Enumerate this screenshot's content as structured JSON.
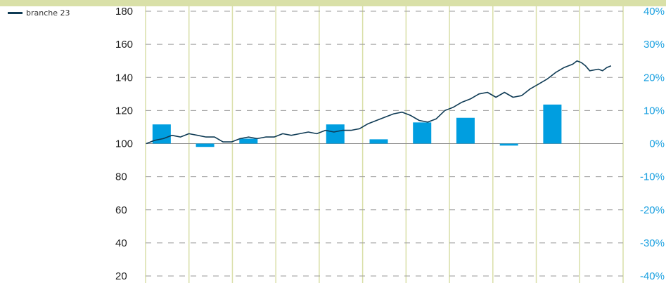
{
  "colors": {
    "line": "#0f3b55",
    "bars": "#009ee0",
    "grid_vertical": "#d9dfa8",
    "grid_horizontal": "#9a9a9a",
    "right_axis_text": "#1aa0e0",
    "top_band": "#d9e0a8"
  },
  "legend": {
    "label": "branche 23"
  },
  "chart_data": {
    "type": "bar+line",
    "title": "",
    "left_axis": {
      "ylim": [
        20,
        180
      ],
      "ticks": [
        "180",
        "160",
        "140",
        "120",
        "100",
        "80",
        "60",
        "40",
        "20"
      ]
    },
    "right_axis": {
      "ylim": [
        -40,
        40
      ],
      "ticks": [
        "40%",
        "30%",
        "20%",
        "10%",
        "0%",
        "-10%",
        "-20%",
        "-30%",
        "-40%"
      ]
    },
    "grid": {
      "horizontal": true,
      "horizontal_style": "dashed",
      "vertical": true
    },
    "series": [
      {
        "name": "branche 23",
        "type": "line",
        "axis": "left",
        "x_domain": [
          0,
          110
        ],
        "points": [
          [
            0,
            100
          ],
          [
            2,
            102
          ],
          [
            4,
            103
          ],
          [
            6,
            105
          ],
          [
            8,
            104
          ],
          [
            10,
            106
          ],
          [
            12,
            105
          ],
          [
            14,
            104
          ],
          [
            16,
            104
          ],
          [
            18,
            101
          ],
          [
            20,
            101
          ],
          [
            22,
            103
          ],
          [
            24,
            104
          ],
          [
            26,
            103
          ],
          [
            28,
            104
          ],
          [
            30,
            104
          ],
          [
            32,
            106
          ],
          [
            34,
            105
          ],
          [
            36,
            106
          ],
          [
            38,
            107
          ],
          [
            40,
            106
          ],
          [
            42,
            108
          ],
          [
            44,
            107
          ],
          [
            46,
            108
          ],
          [
            48,
            108
          ],
          [
            50,
            109
          ],
          [
            52,
            112
          ],
          [
            54,
            114
          ],
          [
            56,
            116
          ],
          [
            58,
            118
          ],
          [
            60,
            119
          ],
          [
            62,
            117
          ],
          [
            64,
            114
          ],
          [
            66,
            113
          ],
          [
            68,
            115
          ],
          [
            70,
            120
          ],
          [
            72,
            122
          ],
          [
            74,
            125
          ],
          [
            76,
            127
          ],
          [
            78,
            130
          ],
          [
            80,
            131
          ],
          [
            82,
            128
          ],
          [
            84,
            131
          ],
          [
            86,
            128
          ],
          [
            88,
            129
          ],
          [
            90,
            133
          ],
          [
            92,
            136
          ],
          [
            94,
            139
          ],
          [
            96,
            143
          ],
          [
            98,
            146
          ],
          [
            100,
            148
          ],
          [
            101,
            150
          ],
          [
            102,
            149
          ],
          [
            103,
            147
          ],
          [
            104,
            144
          ],
          [
            106,
            145
          ],
          [
            107,
            144
          ],
          [
            108,
            146
          ],
          [
            109,
            147
          ]
        ]
      },
      {
        "name": "",
        "type": "bar",
        "axis": "right",
        "values": [
          5.8,
          -1.0,
          1.5,
          0.0,
          5.8,
          1.3,
          6.4,
          7.8,
          -0.6,
          11.8,
          0.0
        ]
      }
    ]
  }
}
